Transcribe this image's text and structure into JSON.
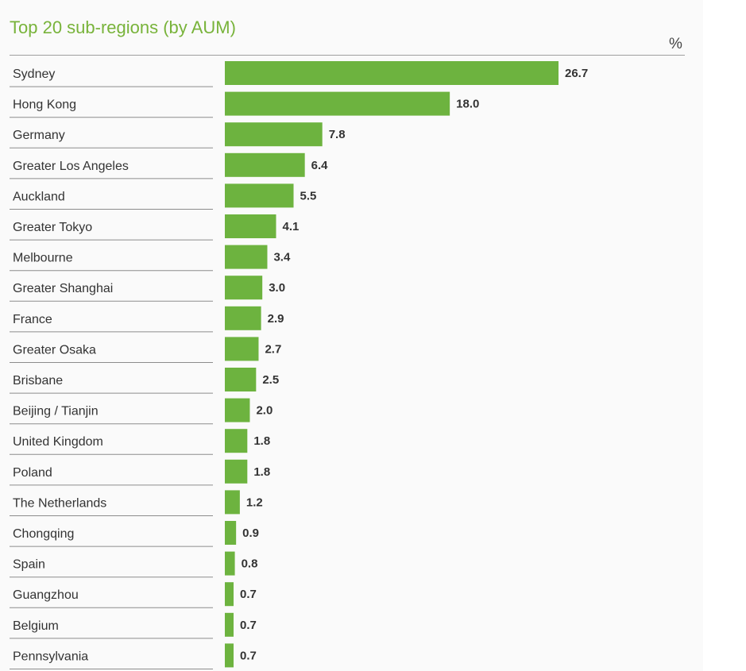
{
  "chart_data": {
    "type": "bar",
    "orientation": "horizontal",
    "title": "Top 20 sub-regions (by AUM)",
    "unit": "%",
    "categories": [
      "Sydney",
      "Hong Kong",
      "Germany",
      "Greater Los Angeles",
      "Auckland",
      "Greater Tokyo",
      "Melbourne",
      "Greater Shanghai",
      "France",
      "Greater Osaka",
      "Brisbane",
      "Beijing / Tianjin",
      "United Kingdom",
      "Poland",
      "The Netherlands",
      "Chongqing",
      "Spain",
      "Guangzhou",
      "Belgium",
      "Pennsylvania"
    ],
    "values": [
      26.7,
      18.0,
      7.8,
      6.4,
      5.5,
      4.1,
      3.4,
      3.0,
      2.9,
      2.7,
      2.5,
      2.0,
      1.8,
      1.8,
      1.2,
      0.9,
      0.8,
      0.7,
      0.7,
      0.7
    ],
    "value_labels": [
      "26.7",
      "18.0",
      "7.8",
      "6.4",
      "5.5",
      "4.1",
      "3.4",
      "3.0",
      "2.9",
      "2.7",
      "2.5",
      "2.0",
      "1.8",
      "1.8",
      "1.2",
      "0.9",
      "0.8",
      "0.7",
      "0.7",
      "0.7"
    ],
    "xlim": [
      0,
      30
    ],
    "grid": false,
    "legend": "none",
    "bar_color": "#6db33f",
    "title_color": "#78b33a"
  }
}
